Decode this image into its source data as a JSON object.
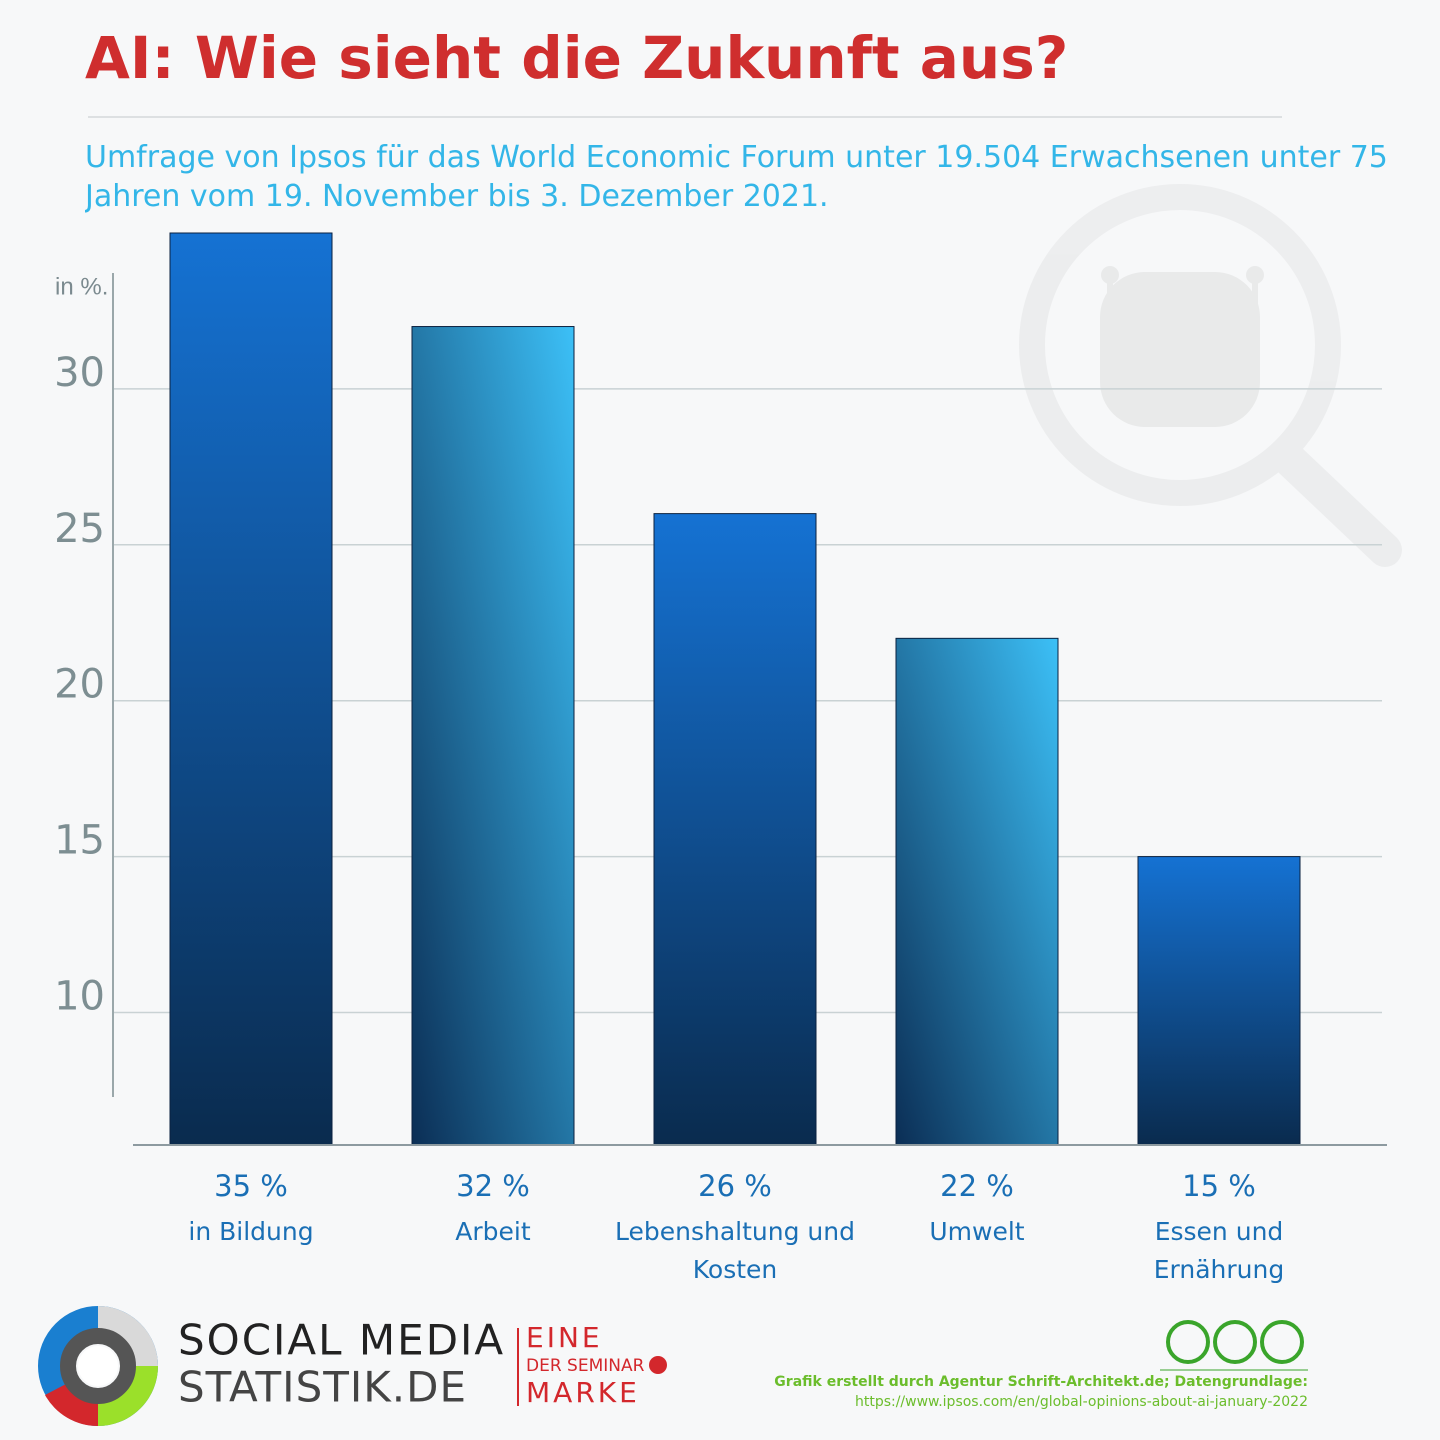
{
  "chart_data": {
    "type": "bar",
    "title": "AI: Wie sieht die Zukunft aus?",
    "subtitle": "Umfrage von Ipsos für das World Economic Forum unter 19.504 Erwachsenen unter 75 Jahren vom 19. November bis 3. Dezember 2021.",
    "y_label": "in %.",
    "categories": [
      "in Bildung",
      "Arbeit",
      "Lebenshaltung und Kosten",
      "Umwelt",
      "Essen und Ernährung"
    ],
    "values": [
      35,
      32,
      26,
      22,
      15
    ],
    "value_labels": [
      "35 %",
      "32 %",
      "26 %",
      "22 %",
      "15 %"
    ],
    "ylim": [
      5.75,
      35
    ],
    "yticks": [
      10,
      15,
      20,
      25,
      30
    ],
    "grid": true
  },
  "footer": {
    "brand_line1": "SOCIAL MEDIA",
    "brand_line2": "STATISTIK.DE",
    "seminar_line1": "EINE",
    "seminar_line2": "DER SEMINAR",
    "seminar_line3": "MARKE",
    "credit": "Grafik erstellt durch Agentur Schrift-Architekt.de; Datengrundlage:",
    "source_url": "https://www.ipsos.com/en/global-opinions-about-ai-january-2022"
  }
}
